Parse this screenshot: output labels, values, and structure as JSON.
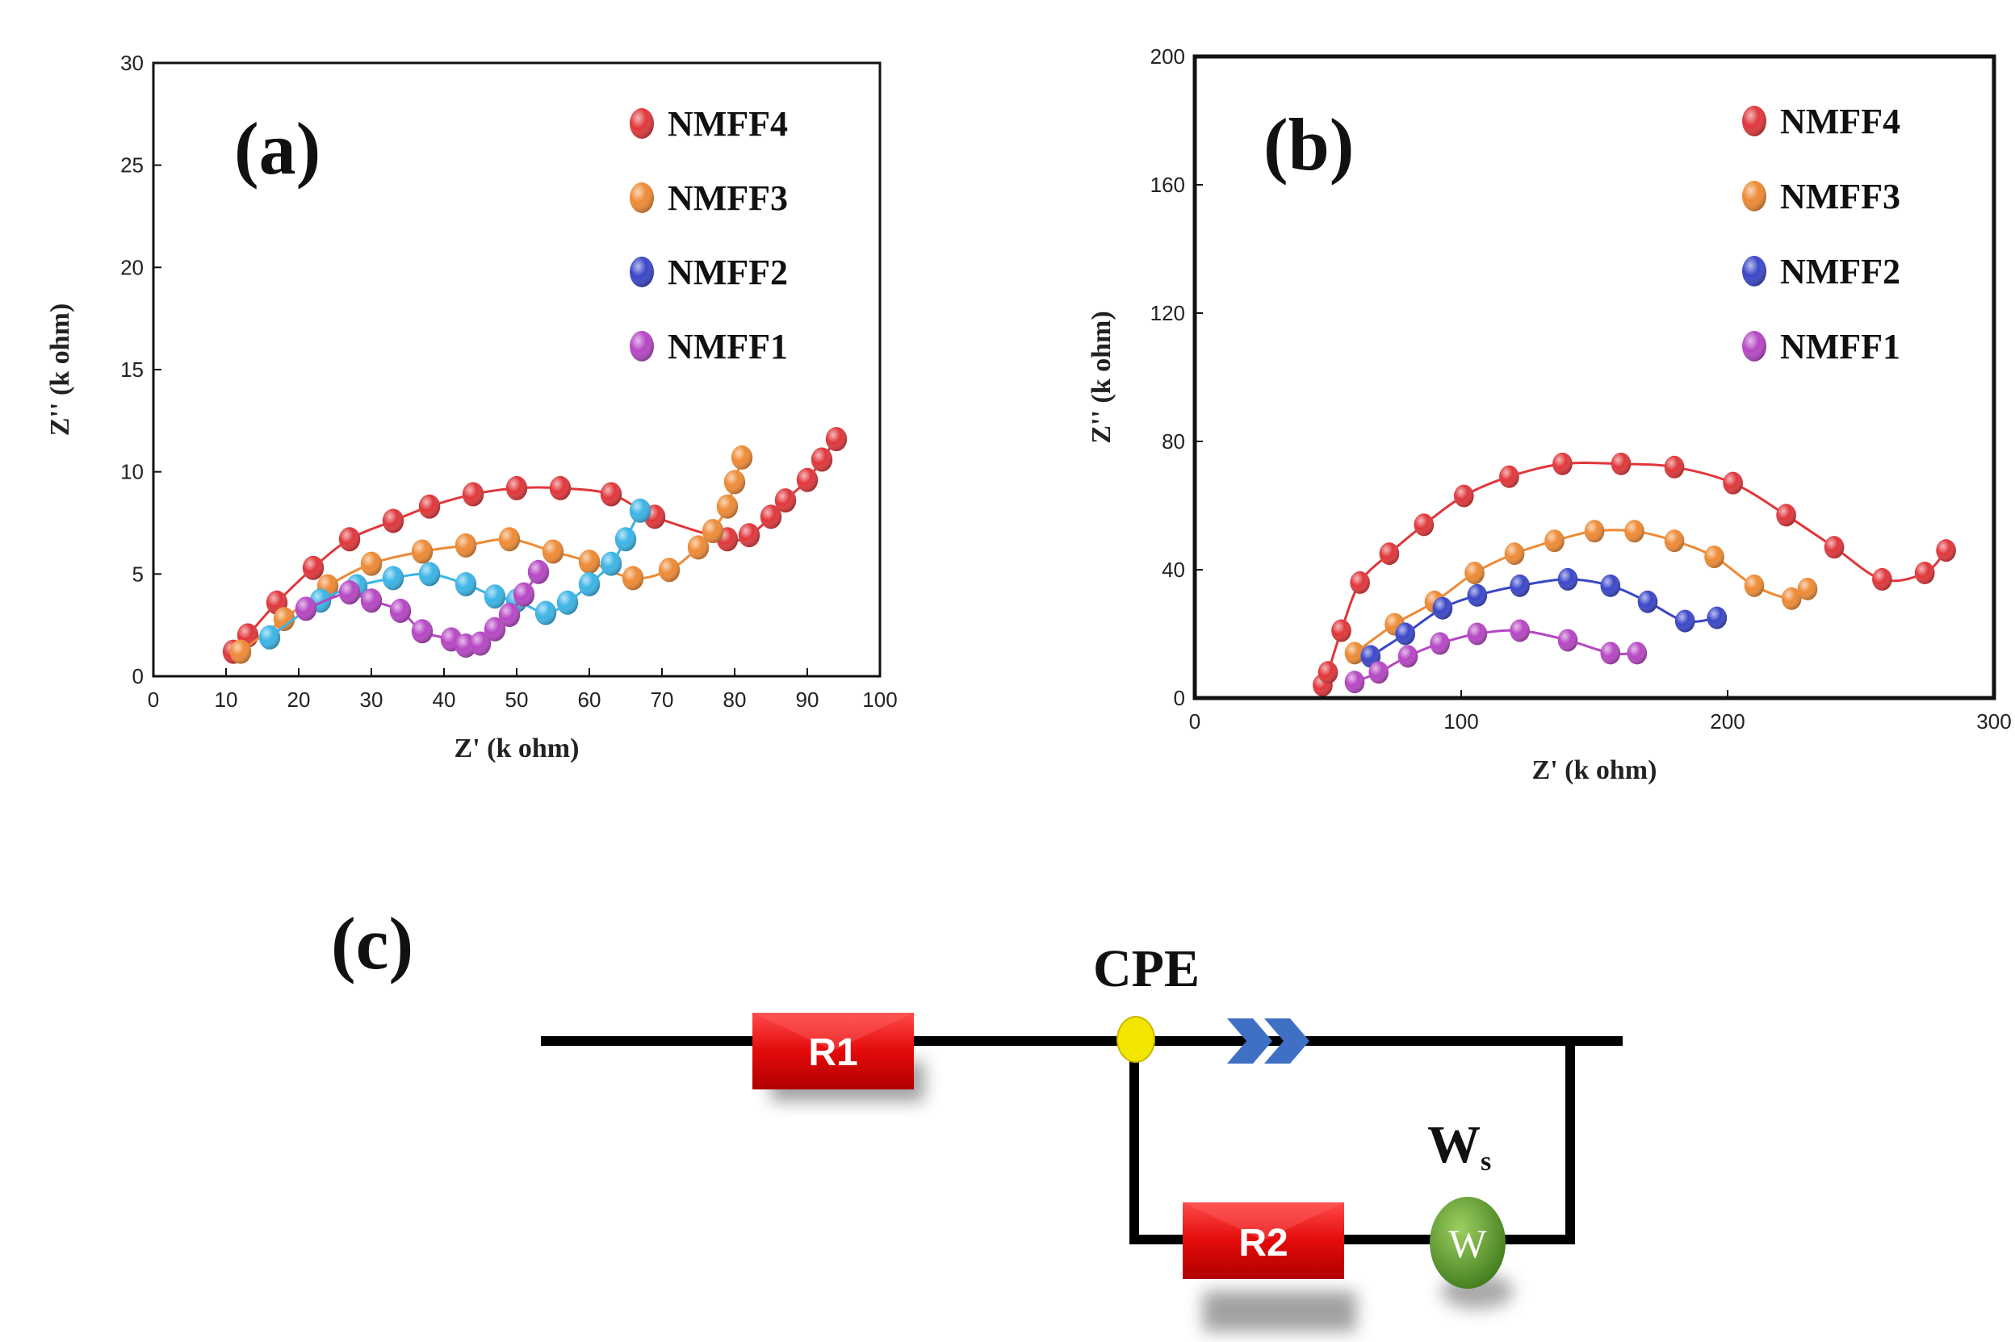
{
  "colors": {
    "NMFF4": "#e0363a",
    "NMFF3": "#ee8a34",
    "NMFF2": "#3a46c8",
    "NMFF2_a": "#3ab4e6",
    "NMFF1": "#b646c4",
    "resistor": "#e30a0a",
    "cpe_node": "#f2e600",
    "cpe_arrow": "#3f70c4",
    "warburg": "#5a9a2a"
  },
  "chart_data": [
    {
      "type": "scatter",
      "panel_label": "(a)",
      "xlabel": "Z' (k ohm)",
      "ylabel": "Z'' (k ohm)",
      "xlim": [
        0,
        100
      ],
      "ylim": [
        0,
        30
      ],
      "xticks": [
        "0",
        "10",
        "20",
        "30",
        "40",
        "50",
        "60",
        "70",
        "80",
        "90",
        "100"
      ],
      "yticks": [
        "0",
        "5",
        "10",
        "15",
        "20",
        "25",
        "30"
      ],
      "legend_position": "top-right",
      "grid": false,
      "series": [
        {
          "name": "NMFF4",
          "x": [
            11,
            13,
            17,
            22,
            27,
            33,
            38,
            44,
            50,
            56,
            63,
            69,
            79,
            82,
            85,
            87,
            90,
            92,
            94
          ],
          "y": [
            1.2,
            2.0,
            3.6,
            5.3,
            6.7,
            7.6,
            8.3,
            8.9,
            9.2,
            9.2,
            8.9,
            7.8,
            6.7,
            6.9,
            7.8,
            8.6,
            9.6,
            10.6,
            11.6
          ]
        },
        {
          "name": "NMFF3",
          "x": [
            12,
            18,
            24,
            30,
            37,
            43,
            49,
            55,
            60,
            66,
            71,
            75,
            77,
            79,
            80,
            81
          ],
          "y": [
            1.2,
            2.8,
            4.4,
            5.5,
            6.1,
            6.4,
            6.7,
            6.1,
            5.6,
            4.8,
            5.2,
            6.3,
            7.1,
            8.3,
            9.5,
            10.7
          ]
        },
        {
          "name": "NMFF2",
          "x": [
            16,
            23,
            28,
            33,
            38,
            43,
            47,
            50,
            54,
            57,
            60,
            63,
            65,
            67
          ],
          "y": [
            1.9,
            3.7,
            4.4,
            4.8,
            5.0,
            4.5,
            3.9,
            3.7,
            3.1,
            3.6,
            4.5,
            5.5,
            6.7,
            8.1
          ]
        },
        {
          "name": "NMFF1",
          "x": [
            21,
            27,
            30,
            34,
            37,
            41,
            43,
            45,
            47,
            49,
            51,
            53
          ],
          "y": [
            3.3,
            4.1,
            3.7,
            3.2,
            2.2,
            1.8,
            1.5,
            1.6,
            2.3,
            3.0,
            4.0,
            5.1
          ]
        }
      ]
    },
    {
      "type": "scatter",
      "panel_label": "(b)",
      "xlabel": "Z' (k ohm)",
      "ylabel": "Z'' (k ohm)",
      "xlim": [
        0,
        300
      ],
      "ylim": [
        0,
        200
      ],
      "xticks": [
        "0",
        "100",
        "200",
        "300"
      ],
      "yticks": [
        "0",
        "40",
        "80",
        "120",
        "160",
        "200"
      ],
      "legend_position": "top-right",
      "grid": false,
      "series": [
        {
          "name": "NMFF4",
          "x": [
            48,
            50,
            55,
            62,
            73,
            86,
            101,
            118,
            138,
            160,
            180,
            202,
            222,
            240,
            258,
            274,
            282
          ],
          "y": [
            4,
            8,
            21,
            36,
            45,
            54,
            63,
            69,
            73,
            73,
            72,
            67,
            57,
            47,
            37,
            39,
            46
          ]
        },
        {
          "name": "NMFF3",
          "x": [
            60,
            75,
            90,
            105,
            120,
            135,
            150,
            165,
            180,
            195,
            210,
            224,
            230
          ],
          "y": [
            14,
            23,
            30,
            39,
            45,
            49,
            52,
            52,
            49,
            44,
            35,
            31,
            34
          ]
        },
        {
          "name": "NMFF2",
          "x": [
            66,
            79,
            93,
            106,
            122,
            140,
            156,
            170,
            184,
            196
          ],
          "y": [
            13,
            20,
            28,
            32,
            35,
            37,
            35,
            30,
            24,
            25
          ]
        },
        {
          "name": "NMFF1",
          "x": [
            60,
            69,
            80,
            92,
            106,
            122,
            140,
            156,
            166
          ],
          "y": [
            5,
            8,
            13,
            17,
            20,
            21,
            18,
            14,
            14
          ]
        }
      ]
    }
  ],
  "circuit": {
    "panel_label": "(c)",
    "r1_label": "R1",
    "r2_label": "R2",
    "cpe_label": "CPE",
    "warburg_label_main": "W",
    "warburg_label_sub": "s",
    "warburg_symbol": "W"
  }
}
